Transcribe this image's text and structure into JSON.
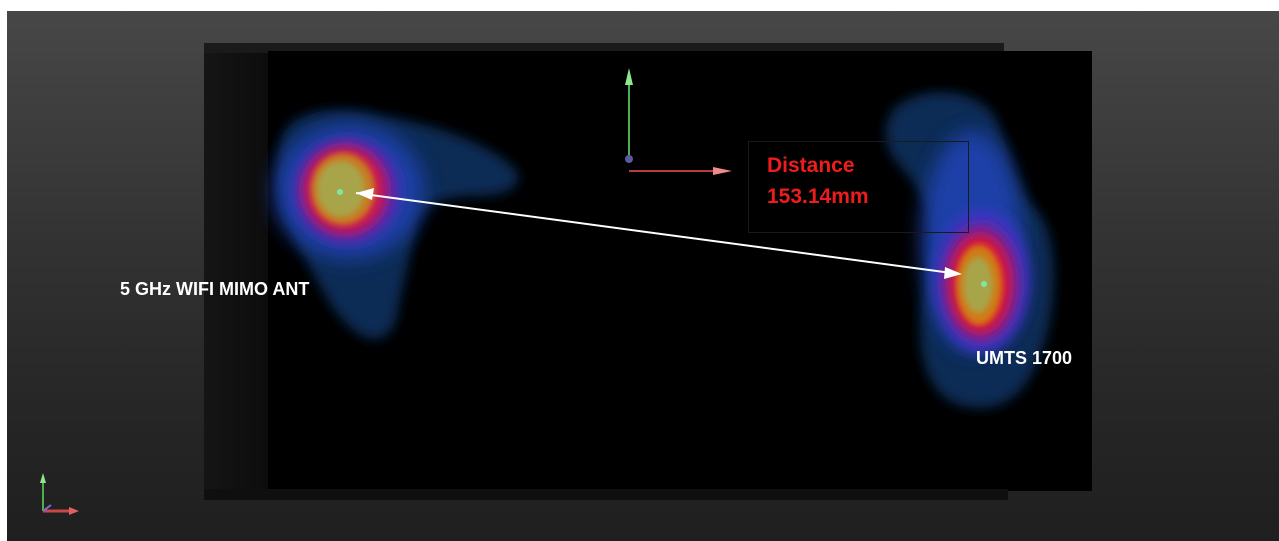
{
  "scene": {
    "left_antenna_label": "5 GHz WIFI MIMO ANT",
    "right_antenna_label": "UMTS 1700",
    "measurement": {
      "title": "Distance",
      "value": "153.14mm",
      "color": "#ee1c1c"
    }
  },
  "colors": {
    "background_top": "#474747",
    "background_bottom": "#1f1f1f",
    "phantom": "#000000",
    "axis_y": "#5cc85c",
    "axis_x": "#d04848",
    "hotspot_dot": "#7ee6a6"
  },
  "icons": {
    "scene_axis": "xyz-axis-gizmo-icon",
    "corner_axis": "orientation-triad-icon",
    "measure_arrow": "double-headed-arrow-icon"
  }
}
